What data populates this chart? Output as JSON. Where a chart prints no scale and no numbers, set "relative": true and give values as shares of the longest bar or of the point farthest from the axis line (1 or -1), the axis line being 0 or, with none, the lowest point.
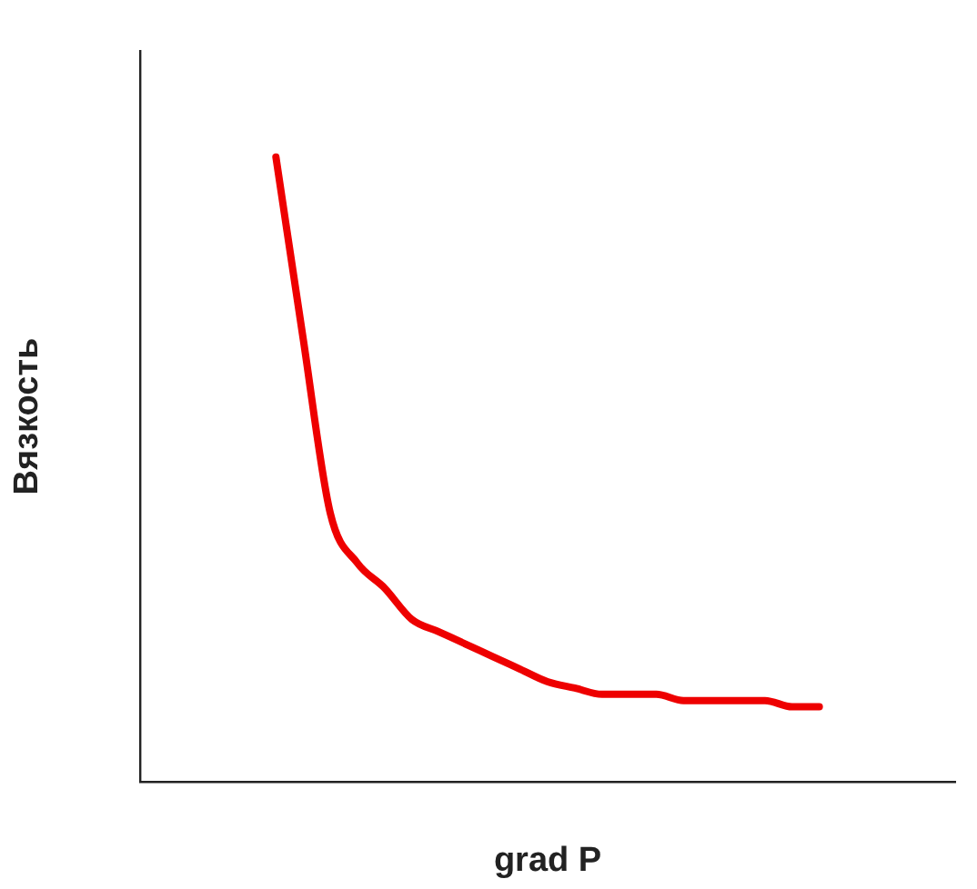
{
  "chart_data": {
    "type": "line",
    "xlabel": "grad P",
    "ylabel": "Вязкость",
    "relative": true,
    "grid": false,
    "legend": false,
    "marker": "none",
    "line_style": "solid",
    "categories": [
      null,
      null,
      null,
      null,
      null,
      null,
      null,
      null,
      null,
      null,
      null,
      null,
      null,
      null,
      null,
      null,
      null,
      null,
      null,
      null,
      null,
      null,
      null,
      null,
      null,
      null,
      null,
      null,
      null,
      null,
      null
    ],
    "series": [
      {
        "color": "#ee0000",
        "values": [
          null,
          null,
          null,
          null,
          null,
          1.0,
          0.71,
          0.43,
          0.35,
          0.31,
          0.26,
          0.24,
          0.22,
          0.2,
          0.18,
          0.16,
          0.15,
          0.14,
          0.14,
          0.14,
          0.13,
          0.13,
          0.13,
          0.13,
          0.12,
          0.12,
          null,
          null,
          null,
          null,
          null
        ]
      }
    ]
  }
}
